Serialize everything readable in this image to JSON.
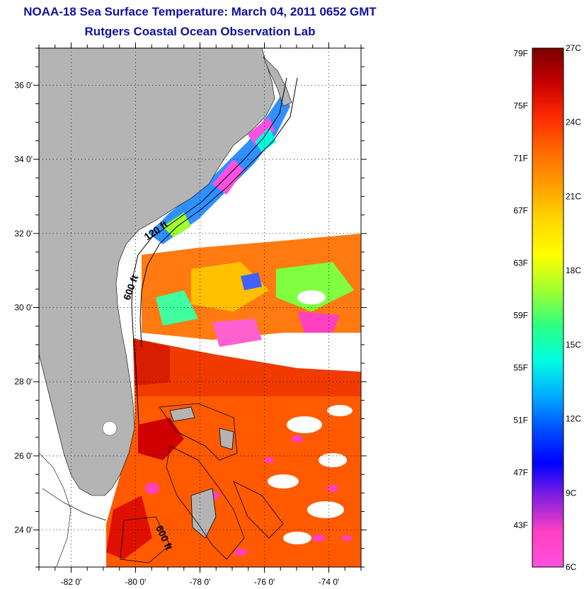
{
  "header": {
    "title": "NOAA-18 Sea Surface Temperature:  March 04, 2011 0652 GMT",
    "subtitle": "Rutgers Coastal Ocean Observation Lab"
  },
  "map": {
    "lon_range": [
      -83,
      -73
    ],
    "lat_range": [
      23,
      37
    ],
    "lon_ticks": [
      {
        "value": -82,
        "label": "-82 0'"
      },
      {
        "value": -80,
        "label": "-80 0'"
      },
      {
        "value": -78,
        "label": "-78 0'"
      },
      {
        "value": -76,
        "label": "-76 0'"
      },
      {
        "value": -74,
        "label": "-74 0'"
      }
    ],
    "lat_ticks": [
      {
        "value": 24,
        "label": "24 0'"
      },
      {
        "value": 26,
        "label": "26 0'"
      },
      {
        "value": 28,
        "label": "28 0'"
      },
      {
        "value": 30,
        "label": "30 0'"
      },
      {
        "value": 32,
        "label": "32 0'"
      },
      {
        "value": 34,
        "label": "34 0'"
      },
      {
        "value": 36,
        "label": "36 0'"
      }
    ],
    "depth_labels": [
      "120 ft",
      "600 ft",
      "600 ft"
    ],
    "land_color": "#b4b4b4",
    "grid": "dotted"
  },
  "colorbar": {
    "fahrenheit_labels": [
      "79F",
      "75F",
      "71F",
      "67F",
      "63F",
      "59F",
      "55F",
      "51F",
      "47F",
      "43F"
    ],
    "celsius_labels": [
      "27C",
      "24C",
      "21C",
      "18C",
      "15C",
      "12C",
      "9C",
      "6C"
    ],
    "colors_top_to_bottom": [
      "#7a0000",
      "#c80000",
      "#ff2a00",
      "#ff6a00",
      "#ffa000",
      "#ffd800",
      "#ffff00",
      "#a0ff30",
      "#30ff80",
      "#00ffe0",
      "#00b0ff",
      "#0050ff",
      "#0000ff",
      "#8a20e0",
      "#ff40c0",
      "#ff50e0"
    ]
  }
}
